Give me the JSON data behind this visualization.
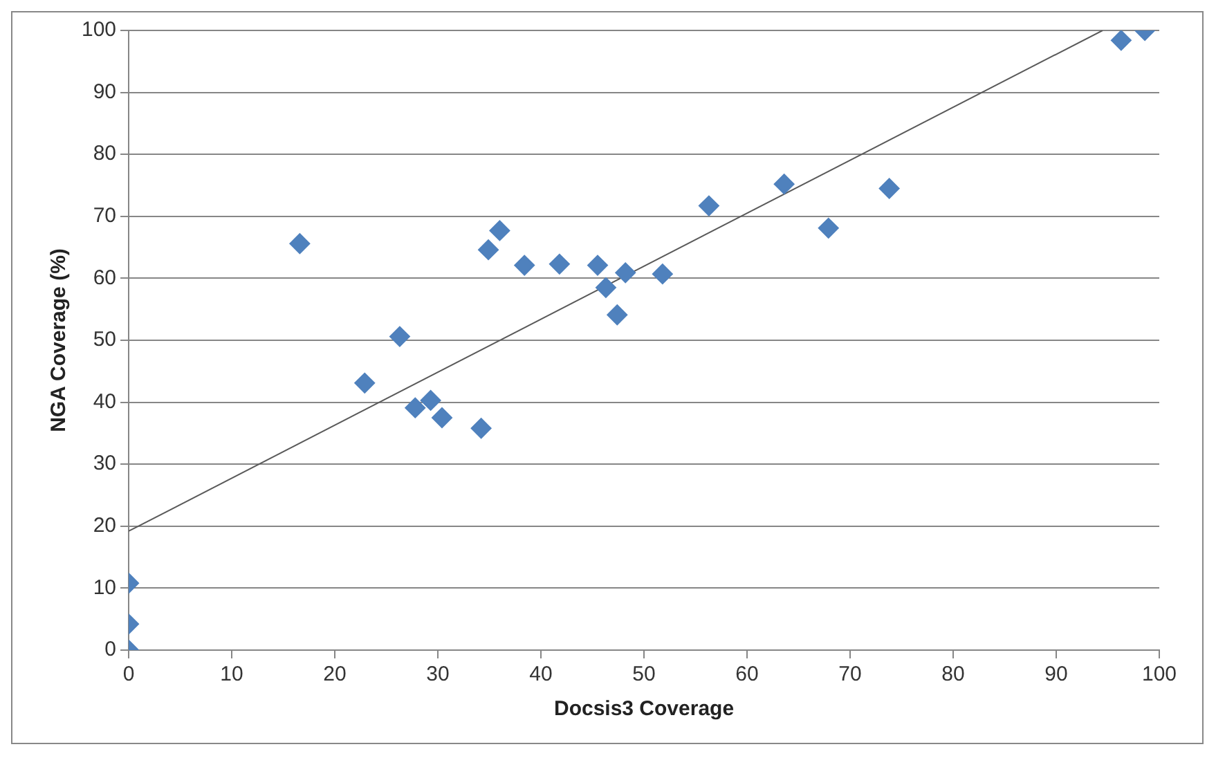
{
  "chart_data": {
    "type": "scatter",
    "xlabel": "Docsis3 Coverage",
    "ylabel": "NGA Coverage (%)",
    "xlim": [
      0,
      100
    ],
    "xticks": [
      0,
      10,
      20,
      30,
      40,
      50,
      60,
      70,
      80,
      90,
      100
    ],
    "ylim": [
      0,
      100
    ],
    "yticks": [
      0,
      10,
      20,
      30,
      40,
      50,
      60,
      70,
      80,
      90,
      100
    ],
    "grid": "y",
    "legend": false,
    "series": [
      {
        "type": "scatter",
        "color": "#4f81bd",
        "marker": "diamond",
        "x": [
          0,
          0,
          0,
          16.6,
          22.9,
          26.3,
          27.8,
          29.3,
          30.4,
          34.2,
          34.9,
          36.0,
          38.4,
          41.8,
          45.5,
          46.3,
          47.4,
          48.2,
          51.8,
          56.3,
          63.6,
          67.9,
          73.8,
          96.3,
          98.6
        ],
        "values": [
          10.8,
          4.2,
          0,
          65.6,
          43.1,
          50.6,
          39.1,
          40.3,
          37.5,
          35.8,
          64.6,
          67.7,
          62.1,
          62.3,
          62.1,
          58.5,
          54.1,
          60.9,
          60.7,
          71.7,
          75.2,
          68.1,
          74.5,
          98.4,
          100
        ]
      },
      {
        "type": "line",
        "color": "#595959",
        "marker": "none",
        "x": [
          0,
          94.5
        ],
        "values": [
          19.2,
          100
        ]
      }
    ]
  }
}
